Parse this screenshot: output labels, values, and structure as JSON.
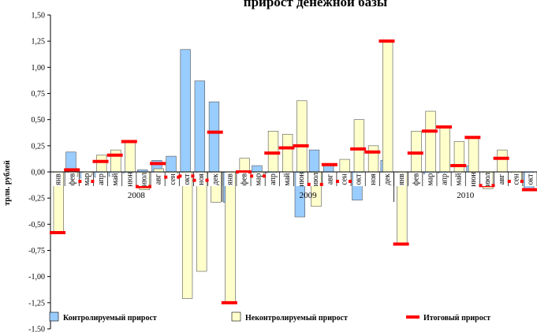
{
  "chart_data": {
    "type": "bar",
    "title": "... прирост ... денежной базы ... (фрагмент заголовка)",
    "ylabel": "трлн. рублей",
    "ylim": [
      -1.5,
      1.5
    ],
    "yticks": [
      "1,50",
      "1,25",
      "1,00",
      "0,75",
      "0,50",
      "0,25",
      "0,00",
      "-0,25",
      "-0,50",
      "-0,75",
      "-1,00",
      "-1,25",
      "-1,50"
    ],
    "yticks_values": [
      1.5,
      1.25,
      1.0,
      0.75,
      0.5,
      0.25,
      0.0,
      -0.25,
      -0.5,
      -0.75,
      -1.0,
      -1.25,
      -1.5
    ],
    "years": [
      "2008",
      "2009",
      "2010"
    ],
    "categories": [
      "янв",
      "фев",
      "мар",
      "апр",
      "май",
      "июн",
      "июл",
      "авг",
      "сен",
      "окт",
      "ноя",
      "дек",
      "янв",
      "фев",
      "мар",
      "апр",
      "май",
      "июн",
      "июл",
      "авг",
      "сен",
      "окт",
      "ноя",
      "дек",
      "янв",
      "фев",
      "мар",
      "апр",
      "май",
      "июн",
      "июл",
      "авг",
      "сен",
      "окт"
    ],
    "series": [
      {
        "name": "Контролируемый прирост",
        "color": "#99CCFF",
        "values": [
          0.0,
          0.19,
          -0.06,
          -0.05,
          -0.04,
          -0.01,
          0.02,
          0.11,
          0.15,
          1.17,
          0.87,
          0.67,
          -0.29,
          0.0,
          0.06,
          -0.01,
          0.0,
          -0.43,
          0.21,
          0.06,
          0.0,
          -0.27,
          0.0,
          0.11,
          0.0,
          0.0,
          -0.02,
          -0.01,
          0.0,
          0.06,
          0.0,
          0.0,
          0.0,
          -0.18
        ]
      },
      {
        "name": "Неконтролируемый прирост",
        "color": "#FFFFCC",
        "values": [
          -0.58,
          -0.04,
          -0.03,
          0.16,
          0.21,
          0.3,
          -0.17,
          0.03,
          -0.01,
          -1.21,
          -0.95,
          -0.29,
          -1.25,
          0.13,
          -0.05,
          0.39,
          0.36,
          0.68,
          -0.33,
          0.0,
          0.12,
          0.5,
          0.25,
          1.25,
          -0.69,
          0.39,
          0.58,
          0.43,
          0.29,
          0.33,
          -0.16,
          0.21,
          -0.09,
          0.0
        ]
      },
      {
        "name": "Итоговый прирост",
        "color": "#FF0000",
        "values": [
          -0.58,
          0.02,
          -0.09,
          0.1,
          0.16,
          0.29,
          -0.14,
          0.08,
          -0.05,
          -0.04,
          -0.08,
          0.38,
          -1.25,
          0.0,
          -0.04,
          0.18,
          0.23,
          0.25,
          -0.12,
          0.07,
          -0.09,
          0.22,
          0.19,
          1.25,
          -0.69,
          0.18,
          0.39,
          0.43,
          0.06,
          0.33,
          -0.13,
          0.13,
          -0.09,
          -0.17
        ]
      }
    ],
    "legend_position": "bottom",
    "grid": false
  }
}
